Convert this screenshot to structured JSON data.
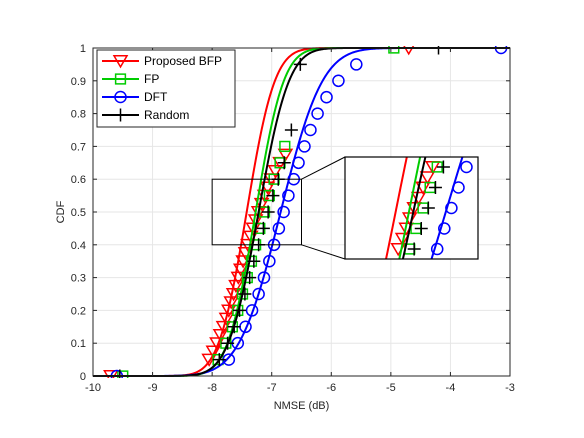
{
  "chart_data": {
    "type": "line",
    "title": "",
    "xlabel": "NMSE (dB)",
    "ylabel": "CDF",
    "xlim": [
      -10,
      -3
    ],
    "ylim": [
      0,
      1
    ],
    "xticks": [
      -10,
      -9,
      -8,
      -7,
      -6,
      -5,
      -4,
      -3
    ],
    "yticks": [
      0,
      0.1,
      0.2,
      0.3,
      0.4,
      0.5,
      0.6,
      0.7,
      0.8,
      0.9,
      1
    ],
    "grid": true,
    "legend_position": "top-left",
    "series": [
      {
        "name": "Proposed BFP",
        "color": "#ff0000",
        "marker": "triangle-down",
        "mu": -7.42,
        "sigma": 0.37,
        "marker_x": [
          -9.7,
          -8.05,
          -7.98,
          -7.92,
          -7.86,
          -7.81,
          -7.76,
          -7.72,
          -7.68,
          -7.64,
          -7.6,
          -7.56,
          -7.52,
          -7.48,
          -7.44,
          -7.4,
          -7.35,
          -7.31,
          -7.27,
          -7.22,
          -7.17,
          -7.12,
          -7.07,
          -7.01,
          -6.94,
          -6.86,
          -6.77,
          -4.7
        ],
        "marker_y": [
          0,
          0.05,
          0.075,
          0.1,
          0.125,
          0.15,
          0.175,
          0.2,
          0.225,
          0.25,
          0.275,
          0.3,
          0.325,
          0.35,
          0.375,
          0.4,
          0.425,
          0.45,
          0.475,
          0.5,
          0.525,
          0.55,
          0.575,
          0.6,
          0.625,
          0.65,
          0.675,
          1
        ]
      },
      {
        "name": "FP",
        "color": "#00cc00",
        "marker": "square",
        "mu": -7.27,
        "sigma": 0.37,
        "marker_x": [
          -9.5,
          -7.9,
          -7.77,
          -7.66,
          -7.57,
          -7.49,
          -7.41,
          -7.34,
          -7.27,
          -7.2,
          -7.12,
          -7.04,
          -6.96,
          -6.86,
          -6.78,
          -4.95
        ],
        "marker_y": [
          0,
          0.05,
          0.1,
          0.15,
          0.2,
          0.25,
          0.3,
          0.35,
          0.4,
          0.45,
          0.5,
          0.55,
          0.6,
          0.65,
          0.7,
          1
        ]
      },
      {
        "name": "DFT",
        "color": "#0000ff",
        "marker": "circle",
        "mu": -6.85,
        "sigma": 0.55,
        "marker_x": [
          -9.6,
          -7.72,
          -7.57,
          -7.44,
          -7.33,
          -7.22,
          -7.13,
          -7.04,
          -6.96,
          -6.88,
          -6.8,
          -6.72,
          -6.63,
          -6.55,
          -6.45,
          -6.35,
          -6.23,
          -6.08,
          -5.88,
          -5.58,
          -3.15
        ],
        "marker_y": [
          0,
          0.05,
          0.1,
          0.15,
          0.2,
          0.25,
          0.3,
          0.35,
          0.4,
          0.45,
          0.5,
          0.55,
          0.6,
          0.65,
          0.7,
          0.75,
          0.8,
          0.85,
          0.9,
          0.95,
          1
        ]
      },
      {
        "name": "Random",
        "color": "#000000",
        "marker": "plus",
        "mu": -7.22,
        "sigma": 0.4,
        "marker_x": [
          -9.55,
          -7.88,
          -7.74,
          -7.63,
          -7.54,
          -7.45,
          -7.37,
          -7.3,
          -7.22,
          -7.14,
          -7.06,
          -6.98,
          -6.89,
          -6.79,
          -6.67,
          -6.52,
          -4.2
        ],
        "marker_y": [
          0,
          0.05,
          0.1,
          0.15,
          0.2,
          0.25,
          0.3,
          0.35,
          0.4,
          0.45,
          0.5,
          0.55,
          0.6,
          0.65,
          0.75,
          0.95,
          1
        ]
      }
    ],
    "zoom_region": {
      "xlim": [
        -8,
        -6.5
      ],
      "ylim": [
        0.4,
        0.6
      ]
    },
    "inset": {
      "xlim": [
        -8,
        -6.5
      ],
      "ylim": [
        0.4,
        0.6
      ],
      "placement": "center-right"
    }
  }
}
